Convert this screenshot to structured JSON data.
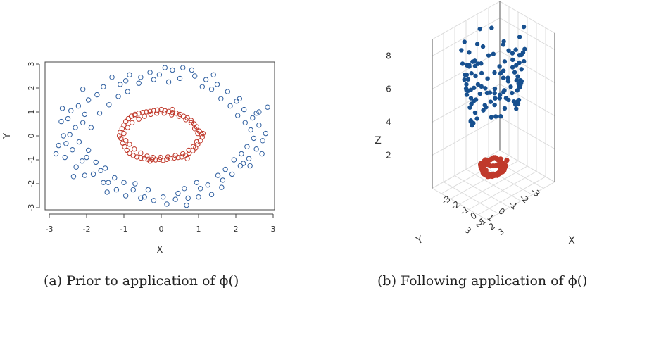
{
  "figure": {
    "caption_a": "(a) Prior to application of ϕ()",
    "caption_b": "(b) Following application of ϕ()"
  },
  "colors": {
    "outer": "#2f5fa0",
    "inner": "#c0392b"
  },
  "chart_data": [
    {
      "type": "scatter",
      "xlabel": "X",
      "ylabel": "Y",
      "xlim": [
        -3,
        3
      ],
      "ylim": [
        -3,
        3
      ],
      "xticks": [
        "-3",
        "-2",
        "-1",
        "0",
        "1",
        "2",
        "3"
      ],
      "yticks": [
        "-3",
        "-2",
        "-1",
        "0",
        "1",
        "2",
        "3"
      ],
      "marker": "open-circle",
      "series": [
        {
          "color": "#2f5fa0",
          "points": [
            [
              -2.82,
              -0.75
            ],
            [
              -2.62,
              0.0
            ],
            [
              -2.55,
              -0.32
            ],
            [
              -2.5,
              0.72
            ],
            [
              -2.42,
              1.05
            ],
            [
              -2.38,
              -0.58
            ],
            [
              -2.3,
              0.35
            ],
            [
              -2.28,
              -1.3
            ],
            [
              -2.22,
              1.25
            ],
            [
              -2.12,
              -1.05
            ],
            [
              -2.05,
              0.9
            ],
            [
              -2.0,
              -0.9
            ],
            [
              -1.95,
              1.5
            ],
            [
              -1.82,
              -1.6
            ],
            [
              -1.72,
              1.72
            ],
            [
              -1.62,
              -1.45
            ],
            [
              -1.55,
              2.05
            ],
            [
              -1.42,
              -1.95
            ],
            [
              -1.32,
              2.45
            ],
            [
              -1.2,
              -2.25
            ],
            [
              -1.1,
              2.15
            ],
            [
              -0.95,
              -2.5
            ],
            [
              -0.85,
              2.55
            ],
            [
              -0.7,
              -2.0
            ],
            [
              -0.55,
              2.45
            ],
            [
              -0.45,
              -2.55
            ],
            [
              -0.3,
              2.65
            ],
            [
              -0.2,
              -2.7
            ],
            [
              -0.05,
              2.55
            ],
            [
              0.15,
              -2.85
            ],
            [
              0.3,
              2.75
            ],
            [
              0.45,
              -2.4
            ],
            [
              0.58,
              2.85
            ],
            [
              0.72,
              -2.6
            ],
            [
              0.9,
              2.5
            ],
            [
              1.05,
              -2.2
            ],
            [
              1.2,
              2.35
            ],
            [
              1.35,
              -2.45
            ],
            [
              1.5,
              2.15
            ],
            [
              1.65,
              -1.85
            ],
            [
              1.78,
              1.85
            ],
            [
              1.9,
              -1.6
            ],
            [
              2.02,
              1.45
            ],
            [
              2.12,
              -1.25
            ],
            [
              2.22,
              1.1
            ],
            [
              2.35,
              -0.95
            ],
            [
              2.45,
              0.75
            ],
            [
              2.55,
              -0.55
            ],
            [
              2.62,
              0.45
            ],
            [
              2.72,
              -0.2
            ],
            [
              2.8,
              0.1
            ],
            [
              2.85,
              1.2
            ],
            [
              2.7,
              -0.75
            ],
            [
              -2.65,
              1.15
            ],
            [
              -2.75,
              -0.4
            ],
            [
              -2.35,
              -1.7
            ],
            [
              -1.55,
              -1.95
            ],
            [
              -0.95,
              2.3
            ],
            [
              0.1,
              2.85
            ],
            [
              1.4,
              2.55
            ],
            [
              2.2,
              -1.15
            ],
            [
              2.1,
              1.55
            ],
            [
              -2.45,
              0.05
            ],
            [
              -2.58,
              -0.9
            ],
            [
              -2.2,
              -0.25
            ],
            [
              -2.1,
              0.55
            ],
            [
              -1.95,
              -0.6
            ],
            [
              -1.88,
              0.35
            ],
            [
              -1.75,
              -1.1
            ],
            [
              -1.65,
              0.95
            ],
            [
              -1.5,
              -1.35
            ],
            [
              -1.4,
              1.3
            ],
            [
              -1.25,
              -1.75
            ],
            [
              -1.15,
              1.65
            ],
            [
              -1.0,
              -1.95
            ],
            [
              -0.9,
              1.85
            ],
            [
              -0.75,
              -2.25
            ],
            [
              -0.6,
              2.2
            ],
            [
              -0.35,
              -2.25
            ],
            [
              -0.2,
              2.35
            ],
            [
              0.05,
              -2.55
            ],
            [
              0.2,
              2.25
            ],
            [
              0.38,
              -2.65
            ],
            [
              0.5,
              2.4
            ],
            [
              0.62,
              -2.2
            ],
            [
              0.82,
              2.75
            ],
            [
              0.95,
              -1.95
            ],
            [
              1.1,
              2.05
            ],
            [
              1.25,
              -2.05
            ],
            [
              1.35,
              1.95
            ],
            [
              1.52,
              -1.65
            ],
            [
              1.6,
              1.55
            ],
            [
              1.72,
              -1.4
            ],
            [
              1.85,
              1.25
            ],
            [
              1.95,
              -1.0
            ],
            [
              2.05,
              0.85
            ],
            [
              2.15,
              -0.75
            ],
            [
              2.25,
              0.55
            ],
            [
              2.3,
              -0.45
            ],
            [
              2.4,
              0.25
            ],
            [
              2.48,
              -0.1
            ],
            [
              2.55,
              0.95
            ],
            [
              -2.1,
              1.95
            ],
            [
              -1.45,
              -2.35
            ],
            [
              -0.55,
              -2.6
            ],
            [
              0.68,
              -2.9
            ],
            [
              1.62,
              -2.15
            ],
            [
              2.38,
              -1.25
            ],
            [
              2.62,
              1.0
            ],
            [
              -2.68,
              0.6
            ],
            [
              -2.05,
              -1.65
            ],
            [
              1.0,
              -2.55
            ]
          ]
        },
        {
          "color": "#c0392b",
          "points": [
            [
              -1.1,
              0.15
            ],
            [
              -1.08,
              -0.1
            ],
            [
              -1.05,
              0.3
            ],
            [
              -1.03,
              -0.3
            ],
            [
              -1.0,
              0.45
            ],
            [
              -0.98,
              -0.45
            ],
            [
              -0.95,
              0.6
            ],
            [
              -0.92,
              -0.6
            ],
            [
              -0.88,
              0.72
            ],
            [
              -0.85,
              -0.72
            ],
            [
              -0.8,
              0.82
            ],
            [
              -0.75,
              -0.82
            ],
            [
              -0.7,
              0.9
            ],
            [
              -0.65,
              -0.88
            ],
            [
              -0.6,
              0.95
            ],
            [
              -0.55,
              -0.92
            ],
            [
              -0.5,
              0.98
            ],
            [
              -0.45,
              -0.95
            ],
            [
              -0.4,
              1.0
            ],
            [
              -0.35,
              -0.98
            ],
            [
              -0.3,
              1.02
            ],
            [
              -0.25,
              -0.98
            ],
            [
              -0.2,
              1.05
            ],
            [
              -0.15,
              -1.0
            ],
            [
              -0.1,
              1.08
            ],
            [
              -0.05,
              -0.98
            ],
            [
              0.0,
              1.1
            ],
            [
              0.05,
              -1.02
            ],
            [
              0.1,
              1.05
            ],
            [
              0.15,
              -0.98
            ],
            [
              0.2,
              1.02
            ],
            [
              0.25,
              -0.95
            ],
            [
              0.3,
              0.98
            ],
            [
              0.35,
              -0.92
            ],
            [
              0.4,
              0.95
            ],
            [
              0.45,
              -0.9
            ],
            [
              0.5,
              0.9
            ],
            [
              0.55,
              -0.88
            ],
            [
              0.6,
              0.82
            ],
            [
              0.65,
              -0.82
            ],
            [
              0.7,
              0.75
            ],
            [
              0.75,
              -0.72
            ],
            [
              0.8,
              0.65
            ],
            [
              0.85,
              -0.62
            ],
            [
              0.88,
              0.5
            ],
            [
              0.92,
              -0.5
            ],
            [
              0.95,
              0.38
            ],
            [
              0.98,
              -0.35
            ],
            [
              1.02,
              0.2
            ],
            [
              1.05,
              -0.2
            ],
            [
              1.08,
              0.05
            ],
            [
              1.1,
              -0.05
            ],
            [
              -1.0,
              0.1
            ],
            [
              -0.95,
              -0.2
            ],
            [
              -0.9,
              0.35
            ],
            [
              -0.85,
              -0.35
            ],
            [
              -0.78,
              0.55
            ],
            [
              -0.72,
              -0.55
            ],
            [
              -0.6,
              0.7
            ],
            [
              -0.55,
              -0.72
            ],
            [
              -0.45,
              0.82
            ],
            [
              -0.38,
              -0.85
            ],
            [
              -0.28,
              0.9
            ],
            [
              -0.22,
              -0.9
            ],
            [
              -0.12,
              0.95
            ],
            [
              -0.02,
              -0.9
            ],
            [
              0.08,
              0.95
            ],
            [
              0.18,
              -0.88
            ],
            [
              0.28,
              0.88
            ],
            [
              0.38,
              -0.82
            ],
            [
              0.48,
              0.82
            ],
            [
              0.58,
              -0.75
            ],
            [
              0.66,
              0.68
            ],
            [
              0.74,
              -0.6
            ],
            [
              0.8,
              0.55
            ],
            [
              0.86,
              -0.45
            ],
            [
              0.9,
              0.3
            ],
            [
              0.95,
              -0.25
            ],
            [
              0.98,
              0.1
            ],
            [
              -1.12,
              0.0
            ],
            [
              1.12,
              0.1
            ],
            [
              0.3,
              1.1
            ],
            [
              -0.3,
              -1.05
            ],
            [
              0.7,
              -0.95
            ],
            [
              -0.7,
              0.85
            ]
          ]
        }
      ]
    },
    {
      "type": "scatter3d",
      "xlabel": "X",
      "ylabel": "Y",
      "zlabel": "Z",
      "xlim": [
        -3,
        3
      ],
      "ylim": [
        -3,
        3
      ],
      "zlim": [
        0,
        9
      ],
      "xticks": [
        "-3",
        "-2",
        "-1",
        "0",
        "1",
        "2",
        "3"
      ],
      "yticks": [
        "-3",
        "-2",
        "-1",
        "0",
        "1",
        "2",
        "3"
      ],
      "zticks": [
        "2",
        "4",
        "6",
        "8"
      ],
      "marker": "filled-circle",
      "series": [
        {
          "color": "#17508f",
          "z_model": "x^2 + y^2 of the outer ring (approx. 4.5 to 9)"
        },
        {
          "color": "#c0392b",
          "z_model": "x^2 + y^2 of the inner ring (approx. 0.8 to 1.2)"
        }
      ]
    }
  ]
}
